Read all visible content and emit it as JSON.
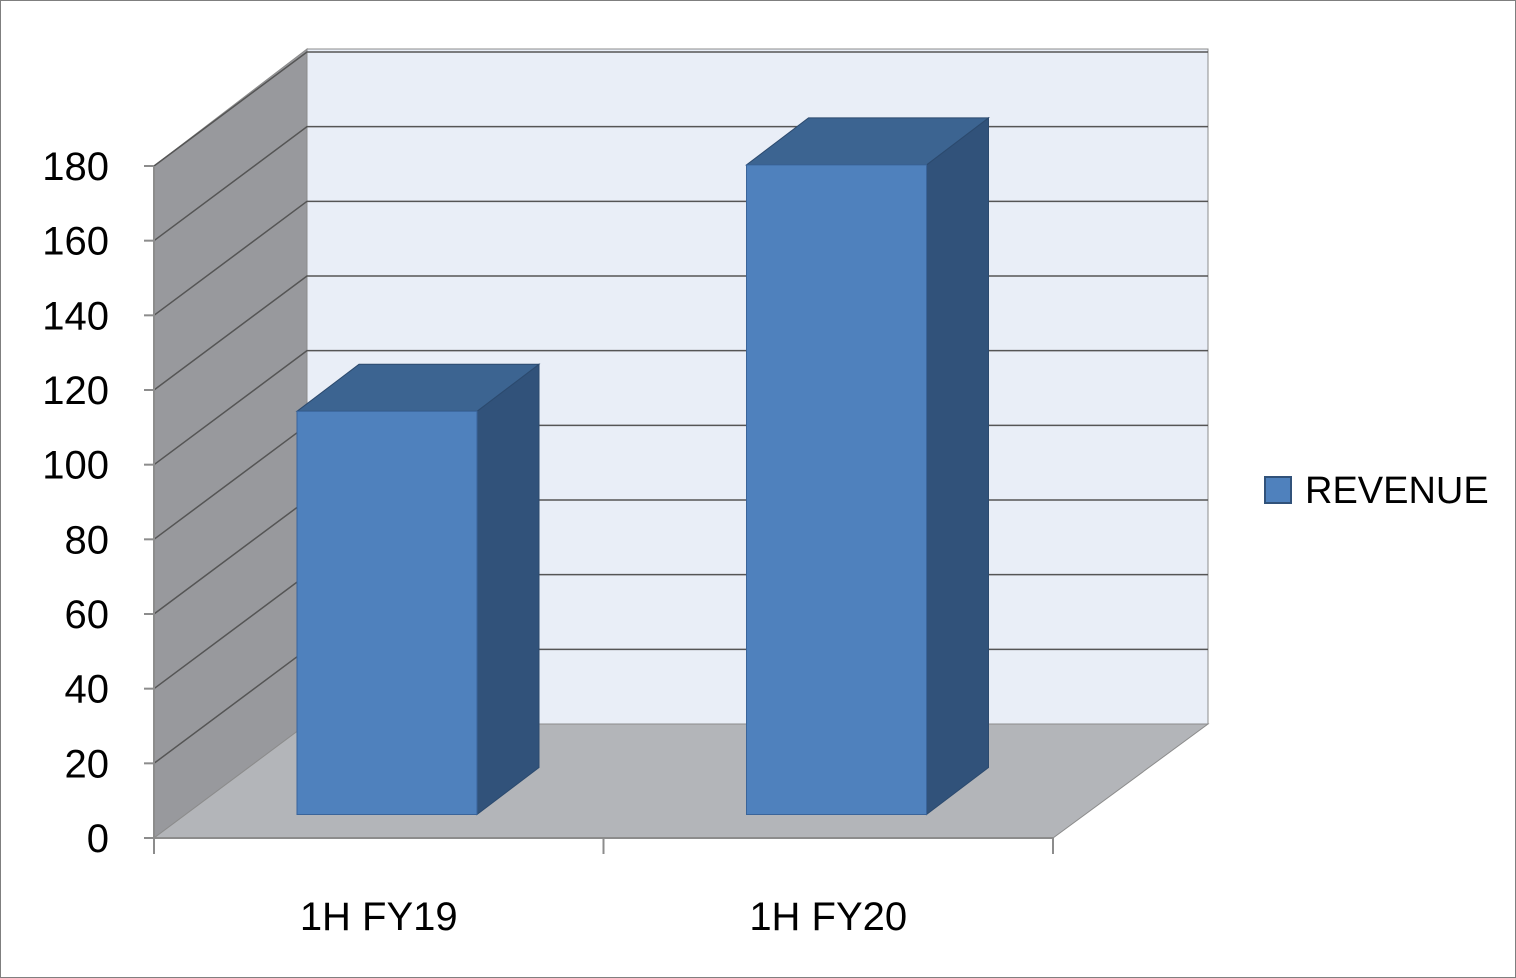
{
  "chart_data": {
    "type": "bar",
    "style": "3d-clustered-column",
    "categories": [
      "1H FY19",
      "1H FY20"
    ],
    "series": [
      {
        "name": "REVENUE",
        "values": [
          108,
          174
        ]
      }
    ],
    "title": "",
    "xlabel": "",
    "ylabel": "",
    "ylim": [
      0,
      180
    ],
    "yticks": [
      "0",
      "20",
      "40",
      "60",
      "80",
      "100",
      "120",
      "140",
      "160",
      "180"
    ],
    "grid": true,
    "legend": {
      "position": "right",
      "label": "REVENUE"
    },
    "colors": {
      "bar_front": "#4f81bd",
      "bar_side": "#31527a",
      "bar_top": "#3c6491",
      "back_wall": "#e9eef7",
      "side_wall": "#98999d",
      "floor": "#b3b5b9",
      "gridline": "#555555"
    }
  }
}
